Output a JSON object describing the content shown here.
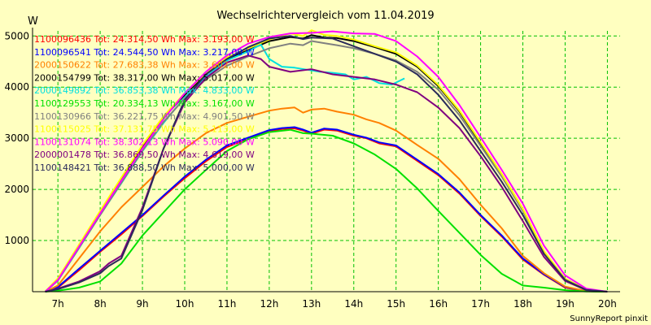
{
  "chart_data": {
    "type": "line",
    "title": "Wechselrichtervergleich vom 11.04.2019",
    "ylabel": "W",
    "xlabel": "",
    "x_range": [
      6.4,
      20.3
    ],
    "ylim": [
      0,
      5100
    ],
    "y_ticks": [
      1000,
      2000,
      3000,
      4000,
      5000
    ],
    "y_tick_labels": [
      "1000",
      "2000",
      "3000",
      "4000",
      "5000"
    ],
    "x_ticks": [
      7,
      8,
      9,
      10,
      11,
      12,
      13,
      14,
      15,
      16,
      17,
      18,
      19,
      20
    ],
    "x_tick_labels": [
      "7h",
      "8h",
      "9h",
      "10h",
      "11h",
      "12h",
      "13h",
      "14h",
      "15h",
      "16h",
      "17h",
      "18h",
      "19h",
      "20h"
    ],
    "grid": true,
    "legend_position": "top-left",
    "series": [
      {
        "name": "1100096436",
        "total": "24.314,50 Wh",
        "max": "3.193,00 W",
        "legend": "1100096436 Tot: 24.314,50 Wh Max: 3.193,00 W",
        "color": "#ff0000",
        "x": [
          6.7,
          7,
          7.5,
          8,
          8.5,
          9,
          9.5,
          10,
          10.5,
          11,
          11.5,
          12,
          12.3,
          12.6,
          12.8,
          13,
          13.3,
          13.6,
          14,
          14.3,
          14.6,
          15,
          15.5,
          16,
          16.5,
          17,
          17.5,
          18,
          18.5,
          19,
          19.5,
          20
        ],
        "y": [
          0,
          80,
          420,
          780,
          1120,
          1480,
          1860,
          2220,
          2550,
          2830,
          2990,
          3140,
          3180,
          3193,
          3150,
          3090,
          3170,
          3150,
          3050,
          3000,
          2900,
          2840,
          2560,
          2280,
          1920,
          1480,
          1080,
          630,
          330,
          80,
          10,
          0
        ]
      },
      {
        "name": "1100096541",
        "total": "24.544,50 Wh",
        "max": "3.217,00 W",
        "legend": "1100096541 Tot: 24.544,50 Wh Max: 3.217,00 W",
        "color": "#0000ff",
        "x": [
          6.7,
          7,
          7.5,
          8,
          8.5,
          9,
          9.5,
          10,
          10.5,
          11,
          11.5,
          12,
          12.3,
          12.6,
          12.8,
          13,
          13.3,
          13.6,
          14,
          14.3,
          14.6,
          15,
          15.5,
          16,
          16.5,
          17,
          17.5,
          18,
          18.5,
          19,
          19.5,
          20
        ],
        "y": [
          0,
          90,
          450,
          800,
          1150,
          1500,
          1880,
          2250,
          2580,
          2860,
          3010,
          3160,
          3200,
          3217,
          3170,
          3110,
          3190,
          3170,
          3070,
          3010,
          2920,
          2860,
          2580,
          2300,
          1940,
          1500,
          1100,
          650,
          340,
          90,
          10,
          0
        ]
      },
      {
        "name": "2000150622",
        "total": "27.683,38 Wh",
        "max": "3.602,00 W",
        "legend": "2000150622 Tot: 27.683,38 Wh Max: 3.602,00 W",
        "color": "#ff8000",
        "x": [
          6.7,
          7,
          7.5,
          8,
          8.5,
          9,
          9.5,
          10,
          10.5,
          11,
          11.5,
          12,
          12.3,
          12.6,
          12.8,
          13,
          13.3,
          13.6,
          14,
          14.3,
          14.6,
          15,
          15.5,
          16,
          16.5,
          17,
          17.5,
          18,
          18.5,
          19,
          19.5,
          20
        ],
        "y": [
          0,
          120,
          650,
          1180,
          1650,
          2050,
          2450,
          2800,
          3100,
          3300,
          3420,
          3540,
          3580,
          3602,
          3500,
          3560,
          3580,
          3520,
          3460,
          3370,
          3300,
          3150,
          2870,
          2600,
          2200,
          1700,
          1240,
          700,
          360,
          100,
          10,
          0
        ]
      },
      {
        "name": "2000154799",
        "total": "38.317,00 Wh",
        "max": "5.017,00 W",
        "legend": "2000154799 Tot: 38.317,00 Wh Max: 5.017,00 W",
        "color": "#000000",
        "x": [
          6.7,
          7,
          7.5,
          8,
          8.5,
          9,
          9.5,
          10,
          10.5,
          11,
          11.5,
          12,
          12.5,
          12.8,
          13,
          13.3,
          13.6,
          14,
          14.5,
          15,
          15.5,
          16,
          16.5,
          17,
          17.5,
          18,
          18.5,
          19,
          19.5,
          20
        ],
        "y": [
          0,
          250,
          900,
          1550,
          2200,
          2850,
          3400,
          3850,
          4250,
          4550,
          4720,
          4900,
          4980,
          4950,
          5017,
          4970,
          4960,
          4900,
          4780,
          4650,
          4400,
          4020,
          3520,
          2900,
          2280,
          1600,
          780,
          250,
          40,
          0
        ]
      },
      {
        "name": "2000149892",
        "total": "36.853,38 Wh",
        "max": "4.833,00 W",
        "legend": "2000149892 Tot: 36.853,38 Wh Max: 4.833,00 W",
        "color": "#00e0e0",
        "x": [
          6.7,
          7,
          7.5,
          8,
          8.5,
          9,
          9.5,
          10,
          10.5,
          11,
          11.5,
          11.8,
          12,
          12.3,
          12.6,
          12.9,
          13.2,
          13.5,
          13.8,
          14,
          14.3,
          14.6,
          14.9,
          15.2
        ],
        "y": [
          0,
          220,
          850,
          1500,
          2120,
          2750,
          3300,
          3800,
          4200,
          4520,
          4700,
          4833,
          4550,
          4400,
          4380,
          4340,
          4300,
          4280,
          4250,
          4150,
          4200,
          4080,
          4050,
          4170
        ]
      },
      {
        "name": "1100129553",
        "total": "20.334,13 Wh",
        "max": "3.167,00 W",
        "legend": "1100129553 Tot: 20.334,13 Wh Max: 3.167,00 W",
        "color": "#00e000",
        "x": [
          6.7,
          7,
          7.5,
          8,
          8.5,
          9,
          9.5,
          10,
          10.5,
          11,
          11.5,
          12,
          12.5,
          12.8,
          13,
          13.5,
          14,
          14.5,
          15,
          15.5,
          16,
          16.5,
          17,
          17.5,
          18,
          18.5,
          19,
          19.5,
          20
        ],
        "y": [
          0,
          20,
          80,
          200,
          550,
          1100,
          1550,
          2000,
          2380,
          2750,
          2980,
          3120,
          3167,
          3100,
          3090,
          3050,
          2900,
          2680,
          2400,
          2020,
          1580,
          1150,
          720,
          350,
          120,
          80,
          30,
          5,
          0
        ]
      },
      {
        "name": "1100130966",
        "total": "36.221,75 Wh",
        "max": "4.901,50 W",
        "legend": "1100130966 Tot: 36.221,75 Wh Max: 4.901,50 W",
        "color": "#808080",
        "x": [
          6.7,
          7,
          7.5,
          8,
          8.5,
          9,
          9.5,
          10,
          10.5,
          11,
          11.5,
          12,
          12.5,
          12.8,
          13,
          13.3,
          13.6,
          14,
          14.5,
          15,
          15.5,
          16,
          16.5,
          17,
          17.5,
          18,
          18.5,
          19,
          19.5,
          20
        ],
        "y": [
          0,
          220,
          860,
          1500,
          2130,
          2760,
          3320,
          3780,
          4150,
          4420,
          4600,
          4760,
          4850,
          4820,
          4901,
          4860,
          4820,
          4760,
          4650,
          4520,
          4300,
          3950,
          3450,
          2850,
          2250,
          1580,
          770,
          240,
          40,
          0
        ]
      },
      {
        "name": "1100115025",
        "total": "37.131,75 Wh",
        "max": "5.113,00 W",
        "legend": "1100115025 Tot: 37.131,75 Wh Max: 5.113,00 W",
        "color": "#ffff00",
        "x": [
          6.7,
          7,
          7.5,
          8,
          8.5,
          9,
          9.5,
          10,
          10.5,
          11,
          11.5,
          12,
          12.5,
          12.8,
          13,
          13.3,
          13.6,
          14,
          14.5,
          15,
          15.5,
          16,
          16.5,
          17,
          17.5,
          18,
          18.5,
          19,
          19.5,
          20
        ],
        "y": [
          0,
          260,
          920,
          1580,
          2230,
          2870,
          3430,
          3880,
          4280,
          4580,
          4760,
          4930,
          5050,
          5000,
          5113,
          5020,
          5000,
          4930,
          4800,
          4680,
          4420,
          4040,
          3540,
          2920,
          2300,
          1620,
          790,
          250,
          40,
          0
        ]
      },
      {
        "name": "1100131074",
        "total": "38.302,13 Wh",
        "max": "5.090,00 W",
        "legend": "1100131074 Tot: 38.302,13 Wh Max: 5.090,00 W",
        "color": "#ff00ff",
        "x": [
          6.7,
          7,
          7.5,
          8,
          8.5,
          9,
          9.5,
          10,
          10.5,
          11,
          11.5,
          12,
          12.5,
          13,
          13.5,
          14,
          14.5,
          15,
          15.5,
          16,
          16.5,
          17,
          17.5,
          18,
          18.5,
          19,
          19.5,
          20
        ],
        "y": [
          0,
          230,
          880,
          1530,
          2170,
          2800,
          3380,
          3880,
          4300,
          4620,
          4850,
          4980,
          5050,
          5060,
          5090,
          5050,
          5040,
          4900,
          4600,
          4200,
          3650,
          3020,
          2380,
          1720,
          900,
          320,
          60,
          0
        ]
      },
      {
        "name": "2000001478",
        "total": "36.869,50 Wh",
        "max": "4.619,00 W",
        "legend": "2000001478 Tot: 36.869,50 Wh Max: 4.619,00 W",
        "color": "#800080",
        "x": [
          6.7,
          7,
          7.5,
          8,
          8.2,
          8.5,
          9,
          9.5,
          10,
          10.5,
          11,
          11.5,
          11.8,
          12,
          12.5,
          13,
          13.5,
          14,
          14.5,
          15,
          15.5,
          16,
          16.5,
          17,
          17.5,
          18,
          18.5,
          19,
          19.5,
          20
        ],
        "y": [
          0,
          60,
          200,
          400,
          550,
          700,
          1650,
          2800,
          3700,
          4180,
          4480,
          4619,
          4550,
          4400,
          4300,
          4350,
          4250,
          4200,
          4150,
          4050,
          3900,
          3600,
          3200,
          2650,
          2050,
          1380,
          680,
          210,
          30,
          0
        ]
      },
      {
        "name": "1100148421",
        "total": "36.888,50 Wh",
        "max": "5.000,00 W",
        "legend": "1100148421 Tot: 36.888,50 Wh Max: 5.000,00 W",
        "color": "#2a2a5a",
        "x": [
          6.7,
          7,
          7.5,
          8,
          8.2,
          8.5,
          9,
          9.5,
          10,
          10.5,
          11,
          11.5,
          12,
          12.5,
          12.8,
          13,
          13.5,
          14,
          14.5,
          15,
          15.5,
          16,
          16.5,
          17,
          17.5,
          18,
          18.5,
          19,
          19.5,
          20
        ],
        "y": [
          0,
          50,
          180,
          360,
          500,
          650,
          1600,
          2800,
          3750,
          4250,
          4550,
          4780,
          4950,
          5000,
          4940,
          4970,
          4950,
          4800,
          4650,
          4500,
          4250,
          3850,
          3350,
          2750,
          2150,
          1500,
          740,
          230,
          35,
          0
        ]
      }
    ],
    "footer": "SunnyReport pinxit"
  }
}
